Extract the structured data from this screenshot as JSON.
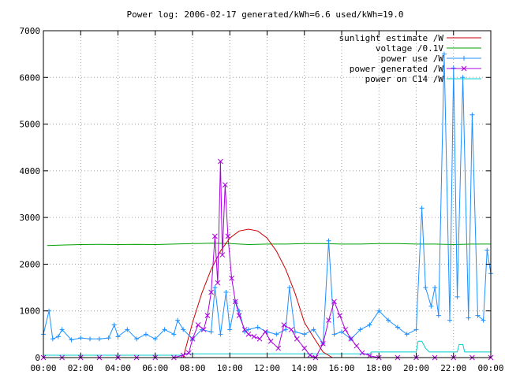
{
  "chart_data": {
    "type": "line",
    "title": "Power log: 2006-02-17 generated/kWh=6.6 used/kWh=19.0",
    "xlim": [
      0,
      24
    ],
    "ylim": [
      0,
      7000
    ],
    "x_ticks": [
      {
        "v": 0,
        "label": "00:00"
      },
      {
        "v": 2,
        "label": "02:00"
      },
      {
        "v": 4,
        "label": "04:00"
      },
      {
        "v": 6,
        "label": "06:00"
      },
      {
        "v": 8,
        "label": "08:00"
      },
      {
        "v": 10,
        "label": "10:00"
      },
      {
        "v": 12,
        "label": "12:00"
      },
      {
        "v": 14,
        "label": "14:00"
      },
      {
        "v": 16,
        "label": "16:00"
      },
      {
        "v": 18,
        "label": "18:00"
      },
      {
        "v": 20,
        "label": "20:00"
      },
      {
        "v": 22,
        "label": "22:00"
      },
      {
        "v": 24,
        "label": "00:00"
      }
    ],
    "y_ticks": [
      {
        "v": 0,
        "label": "0"
      },
      {
        "v": 1000,
        "label": "1000"
      },
      {
        "v": 2000,
        "label": "2000"
      },
      {
        "v": 3000,
        "label": "3000"
      },
      {
        "v": 4000,
        "label": "4000"
      },
      {
        "v": 5000,
        "label": "5000"
      },
      {
        "v": 6000,
        "label": "6000"
      },
      {
        "v": 7000,
        "label": "7000"
      }
    ],
    "grid": true,
    "legend_position": "top-right",
    "series": [
      {
        "name": "sunlight estimate /W",
        "color": "#cc0000",
        "marker": "none",
        "x": [
          7.5,
          8,
          8.5,
          9,
          9.5,
          10,
          10.5,
          11,
          11.5,
          12,
          12.5,
          13,
          13.5,
          14,
          14.5,
          15,
          15.5
        ],
        "y": [
          0,
          750,
          1380,
          1890,
          2280,
          2560,
          2710,
          2750,
          2710,
          2560,
          2280,
          1890,
          1380,
          750,
          430,
          120,
          0
        ]
      },
      {
        "name": "voltage /0.1V",
        "color": "#00a000",
        "marker": "none",
        "x": [
          0.2,
          1,
          2,
          3,
          4,
          5,
          6,
          7,
          8,
          9,
          10,
          11,
          12,
          13,
          14,
          15,
          16,
          17,
          18,
          19,
          20,
          21,
          22,
          23,
          24
        ],
        "y": [
          2400,
          2410,
          2420,
          2425,
          2420,
          2425,
          2420,
          2430,
          2440,
          2450,
          2440,
          2420,
          2430,
          2430,
          2440,
          2440,
          2430,
          2430,
          2440,
          2440,
          2430,
          2430,
          2420,
          2430,
          2430
        ]
      },
      {
        "name": "power use /W",
        "color": "#1e90ff",
        "marker": "plus",
        "x": [
          0,
          0.3,
          0.5,
          0.8,
          1,
          1.5,
          2,
          2.5,
          3,
          3.5,
          3.8,
          4,
          4.5,
          5,
          5.5,
          6,
          6.5,
          7,
          7.2,
          7.5,
          8,
          8.5,
          9,
          9.2,
          9.5,
          9.8,
          10,
          10.3,
          10.5,
          10.8,
          11,
          11.5,
          12,
          12.5,
          13,
          13.2,
          13.5,
          14,
          14.5,
          15,
          15.3,
          15.6,
          16,
          16.5,
          17,
          17.5,
          18,
          18.5,
          19,
          19.5,
          20,
          20.3,
          20.5,
          20.8,
          21,
          21.2,
          21.5,
          21.8,
          22,
          22.2,
          22.5,
          22.8,
          23,
          23.3,
          23.6,
          23.8,
          24
        ],
        "y": [
          500,
          1000,
          400,
          450,
          600,
          380,
          420,
          400,
          400,
          420,
          700,
          450,
          600,
          400,
          500,
          400,
          600,
          500,
          800,
          600,
          400,
          600,
          550,
          1500,
          500,
          1400,
          600,
          1200,
          1000,
          550,
          600,
          650,
          550,
          500,
          600,
          1500,
          550,
          500,
          600,
          300,
          2500,
          500,
          550,
          400,
          600,
          700,
          1000,
          800,
          650,
          500,
          600,
          3200,
          1500,
          1100,
          1500,
          900,
          6500,
          800,
          6200,
          1300,
          6000,
          850,
          5200,
          900,
          800,
          2300,
          1800
        ]
      },
      {
        "name": "power generated /W",
        "color": "#aa00dd",
        "marker": "cross",
        "x": [
          0,
          1,
          2,
          3,
          4,
          5,
          6,
          7,
          7.5,
          7.8,
          8,
          8.3,
          8.6,
          8.8,
          9,
          9.2,
          9.35,
          9.5,
          9.6,
          9.75,
          9.9,
          10.1,
          10.3,
          10.5,
          10.8,
          11,
          11.3,
          11.6,
          11.9,
          12.2,
          12.6,
          12.9,
          13.3,
          13.6,
          14,
          14.3,
          14.6,
          15,
          15.3,
          15.6,
          15.9,
          16.2,
          16.5,
          16.8,
          17.1,
          17.5,
          18,
          19,
          20,
          21,
          22,
          23,
          24
        ],
        "y": [
          0,
          0,
          0,
          0,
          0,
          0,
          0,
          0,
          50,
          100,
          400,
          700,
          600,
          900,
          1400,
          2600,
          1600,
          4200,
          2200,
          3700,
          2600,
          1700,
          1200,
          900,
          600,
          500,
          450,
          400,
          550,
          350,
          200,
          700,
          600,
          400,
          200,
          50,
          0,
          300,
          800,
          1200,
          900,
          600,
          400,
          250,
          100,
          40,
          0,
          0,
          0,
          0,
          0,
          0,
          0
        ]
      },
      {
        "name": "power on C14 /W",
        "color": "#00cccc",
        "marker": "none",
        "x": [
          0,
          5,
          7.5,
          7.6,
          14,
          17.5,
          17.6,
          20,
          20.1,
          20.3,
          20.5,
          20.7,
          21.5,
          22.2,
          22.3,
          22.5,
          22.6,
          24
        ],
        "y": [
          50,
          50,
          50,
          80,
          80,
          80,
          120,
          120,
          350,
          350,
          200,
          120,
          120,
          120,
          280,
          280,
          120,
          120
        ]
      }
    ]
  }
}
